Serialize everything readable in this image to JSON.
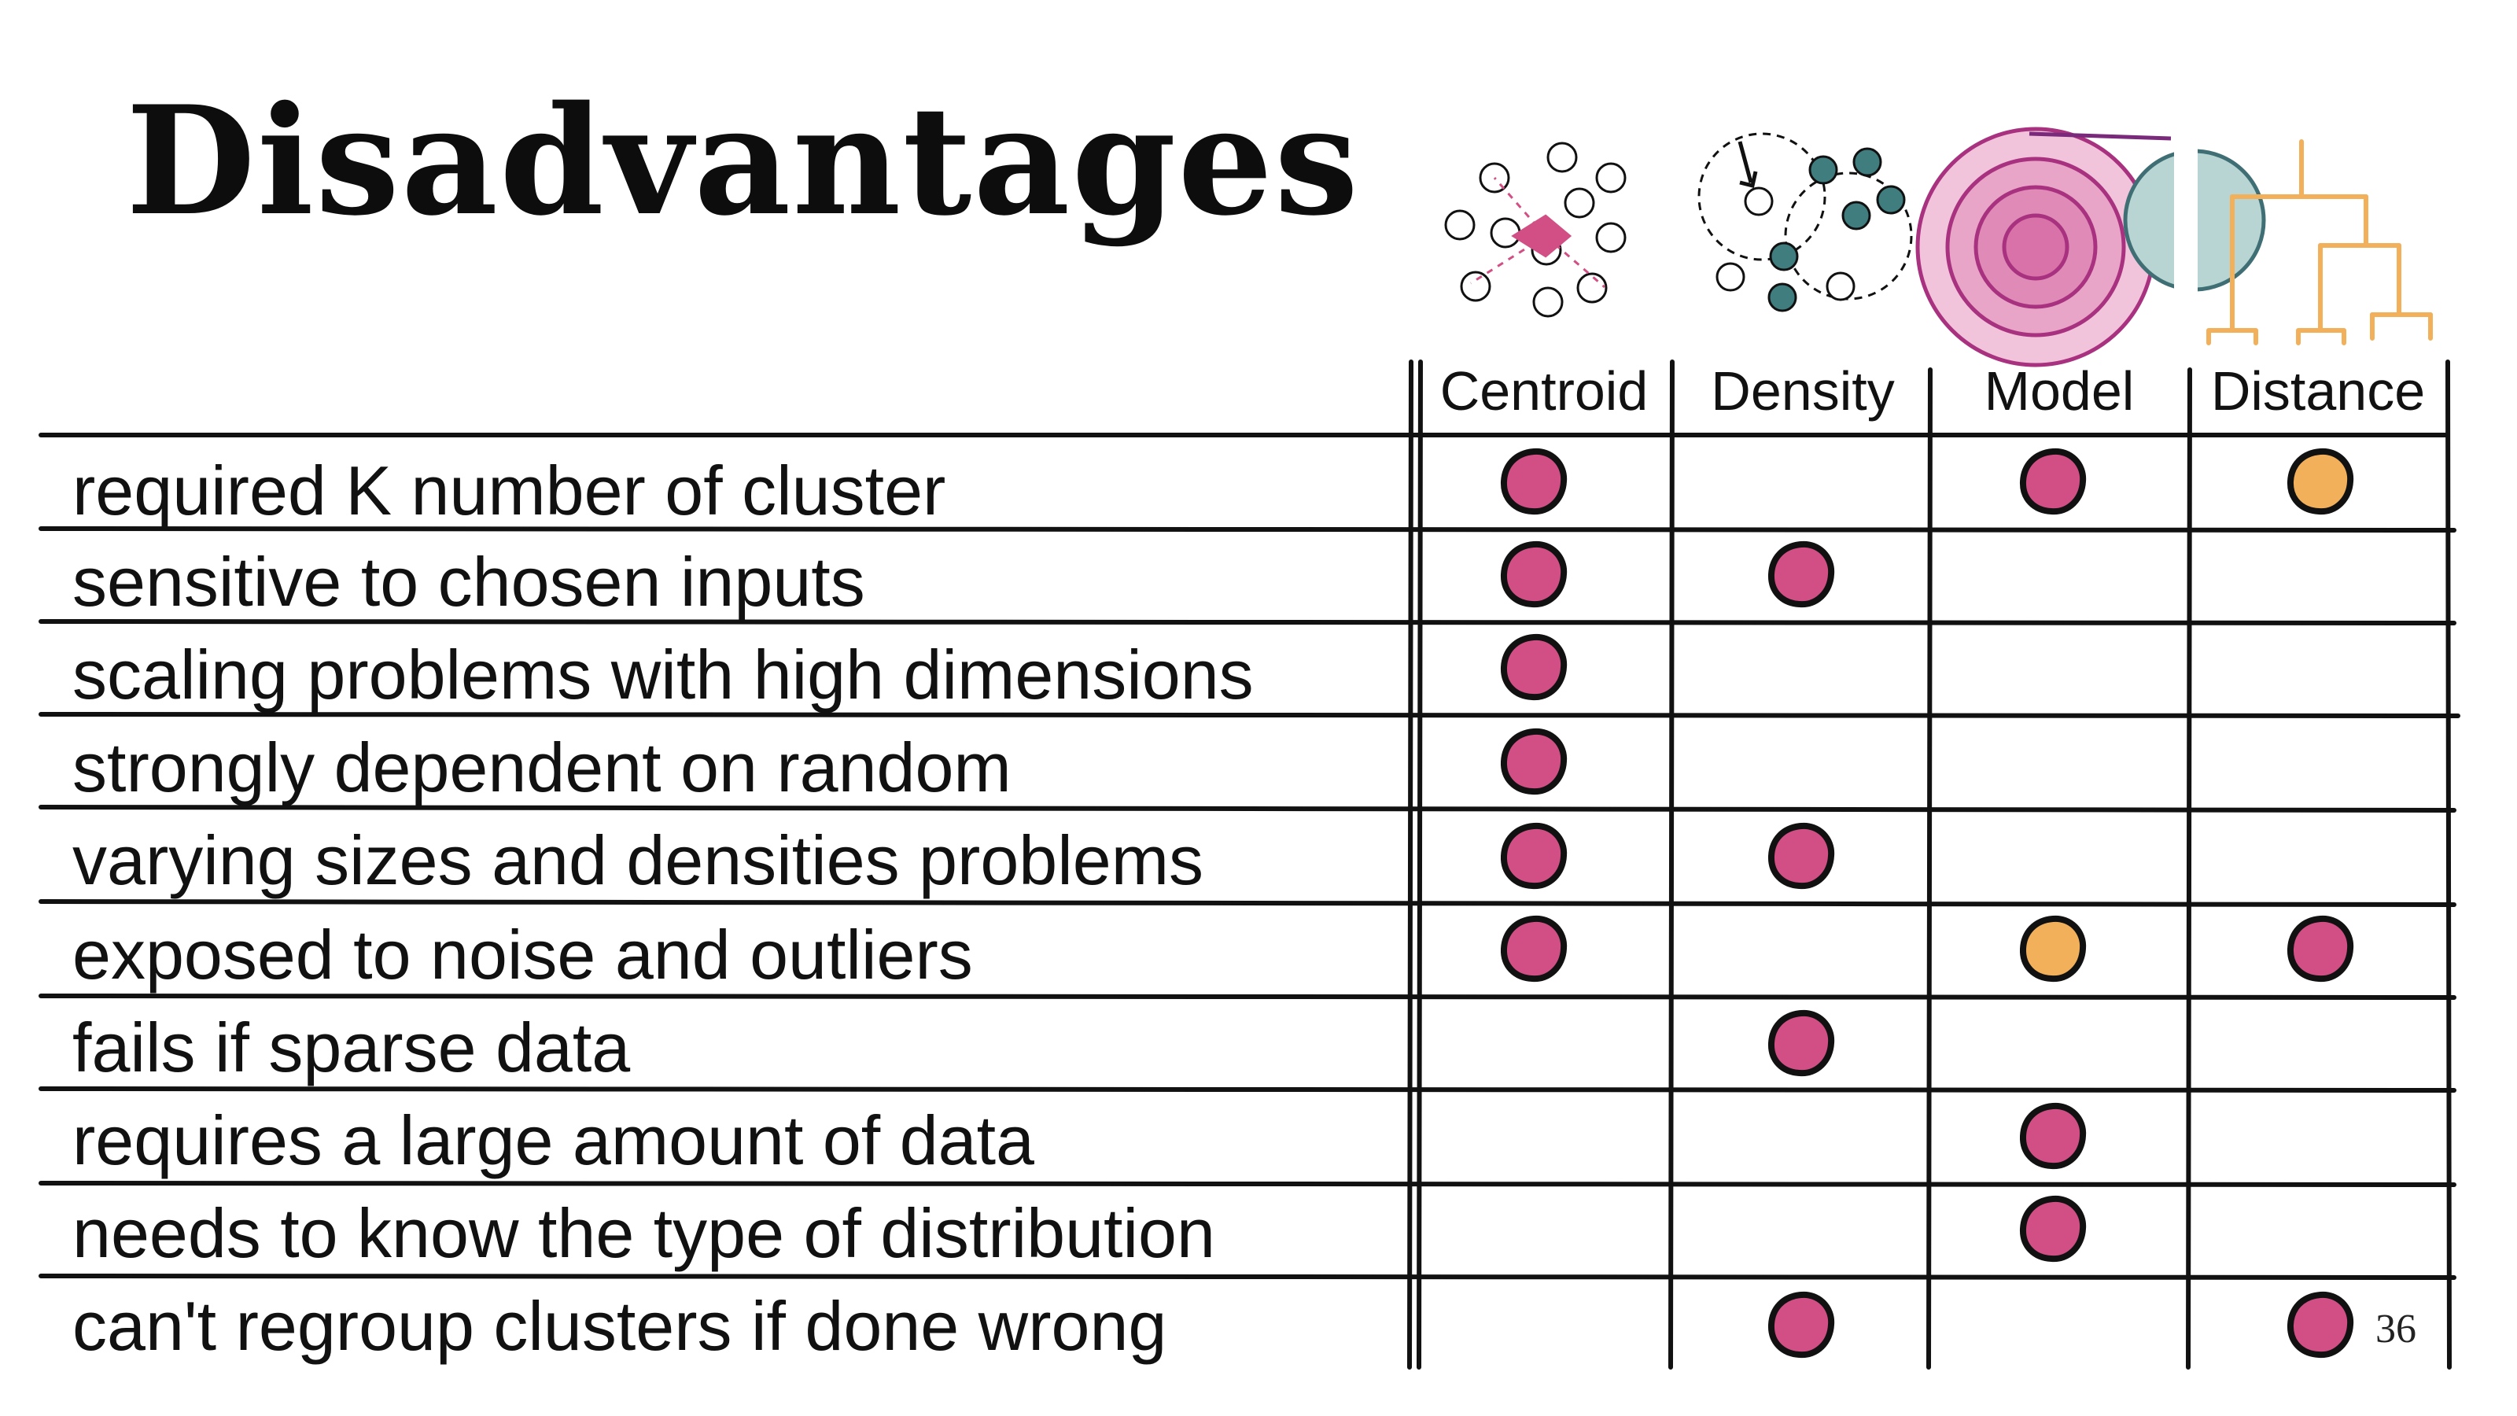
{
  "title": "Disadvantages",
  "page_number": "36",
  "colors": {
    "pink": "#d24f85",
    "orange": "#f2b05b",
    "teal": "#3f7d7f",
    "plum": "#7a2a7a",
    "ink": "#111111"
  },
  "columns": [
    {
      "label": "Centroid",
      "icon": "centroid-cluster-icon"
    },
    {
      "label": "Density",
      "icon": "density-cluster-icon"
    },
    {
      "label": "Model",
      "icon": "model-cluster-icon"
    },
    {
      "label": "Distance",
      "icon": "dendrogram-icon"
    }
  ],
  "rows": [
    {
      "label": "required K number of cluster",
      "marks": [
        "pink",
        "",
        "pink",
        "orange"
      ]
    },
    {
      "label": "sensitive to chosen inputs",
      "marks": [
        "pink",
        "pink",
        "",
        ""
      ]
    },
    {
      "label": "scaling problems with high dimensions",
      "marks": [
        "pink",
        "",
        "",
        ""
      ]
    },
    {
      "label": "strongly dependent on random",
      "marks": [
        "pink",
        "",
        "",
        ""
      ]
    },
    {
      "label": "varying sizes and densities problems",
      "marks": [
        "pink",
        "pink",
        "",
        ""
      ]
    },
    {
      "label": "exposed to noise and outliers",
      "marks": [
        "pink",
        "",
        "orange",
        "pink"
      ]
    },
    {
      "label": "fails if sparse data",
      "marks": [
        "",
        "pink",
        "",
        ""
      ]
    },
    {
      "label": "requires a large amount of data",
      "marks": [
        "",
        "",
        "pink",
        ""
      ]
    },
    {
      "label": "needs to know the type of distribution",
      "marks": [
        "",
        "",
        "pink",
        ""
      ]
    },
    {
      "label": "can't regroup clusters if done wrong",
      "marks": [
        "",
        "pink",
        "",
        "pink"
      ]
    }
  ]
}
